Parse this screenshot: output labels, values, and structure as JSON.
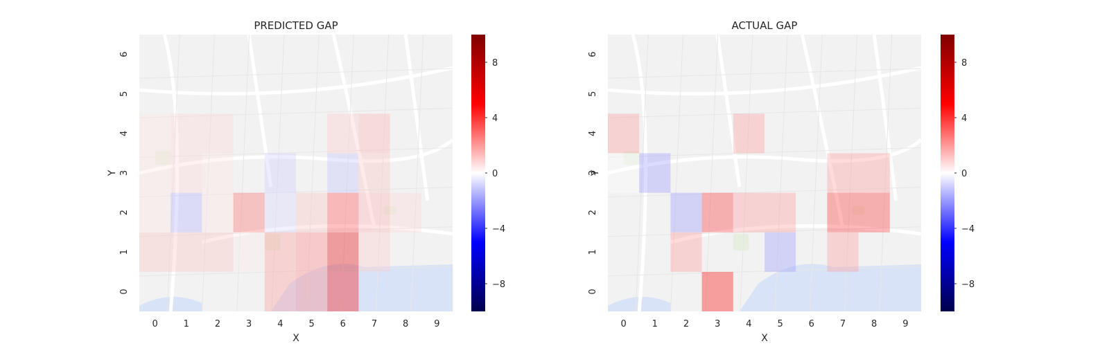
{
  "figure": {
    "background": "#ffffff"
  },
  "colors": {
    "map_land": "#f2f2f2",
    "map_water": "#d8e3f7",
    "map_park": "#e6eedf",
    "positive": "#ff0000",
    "negative": "#0000ff"
  },
  "colorbar": {
    "vmin": -10,
    "vmax": 10,
    "ticks": [
      8,
      4,
      0,
      -4,
      -8
    ],
    "tick_labels": [
      "8",
      "4",
      "0",
      "−4",
      "−8"
    ],
    "colormap": "seismic"
  },
  "chart_data": [
    {
      "type": "heatmap",
      "title": "PREDICTED GAP",
      "xlabel": "X",
      "ylabel": "Y",
      "x": [
        0,
        1,
        2,
        3,
        4,
        5,
        6,
        7,
        8,
        9
      ],
      "y": [
        0,
        1,
        2,
        3,
        4,
        5,
        6
      ],
      "xlim": [
        -0.5,
        9.5
      ],
      "ylim": [
        -0.5,
        6.5
      ],
      "background": "map",
      "cells": [
        {
          "x": 0,
          "y": 1,
          "value": 1.2
        },
        {
          "x": 1,
          "y": 1,
          "value": 1.2
        },
        {
          "x": 2,
          "y": 1,
          "value": 1.2
        },
        {
          "x": 3,
          "y": 1,
          "value": 0.4
        },
        {
          "x": 4,
          "y": 1,
          "value": 2.0
        },
        {
          "x": 5,
          "y": 1,
          "value": 2.5
        },
        {
          "x": 6,
          "y": 1,
          "value": 6.0
        },
        {
          "x": 7,
          "y": 1,
          "value": 1.0
        },
        {
          "x": 4,
          "y": 0,
          "value": 2.0
        },
        {
          "x": 5,
          "y": 0,
          "value": 2.5
        },
        {
          "x": 6,
          "y": 0,
          "value": 5.0
        },
        {
          "x": 0,
          "y": 2,
          "value": 0.5
        },
        {
          "x": 1,
          "y": 2,
          "value": -1.5
        },
        {
          "x": 2,
          "y": 2,
          "value": 0.5
        },
        {
          "x": 3,
          "y": 2,
          "value": 3.0
        },
        {
          "x": 4,
          "y": 2,
          "value": -0.8
        },
        {
          "x": 5,
          "y": 2,
          "value": 1.2
        },
        {
          "x": 6,
          "y": 2,
          "value": 3.5
        },
        {
          "x": 7,
          "y": 2,
          "value": 1.5
        },
        {
          "x": 8,
          "y": 2,
          "value": 0.8
        },
        {
          "x": 0,
          "y": 3,
          "value": 0.5
        },
        {
          "x": 1,
          "y": 3,
          "value": 0.8
        },
        {
          "x": 2,
          "y": 3,
          "value": 0.5
        },
        {
          "x": 4,
          "y": 3,
          "value": -1.0
        },
        {
          "x": 6,
          "y": 3,
          "value": -1.2
        },
        {
          "x": 7,
          "y": 3,
          "value": 1.2
        },
        {
          "x": 0,
          "y": 4,
          "value": 0.5
        },
        {
          "x": 1,
          "y": 4,
          "value": 0.8
        },
        {
          "x": 2,
          "y": 4,
          "value": 0.8
        },
        {
          "x": 6,
          "y": 4,
          "value": 1.0
        },
        {
          "x": 7,
          "y": 4,
          "value": 1.5
        }
      ]
    },
    {
      "type": "heatmap",
      "title": "ACTUAL GAP",
      "xlabel": "X",
      "ylabel": "Y",
      "x": [
        0,
        1,
        2,
        3,
        4,
        5,
        6,
        7,
        8,
        9
      ],
      "y": [
        0,
        1,
        2,
        3,
        4,
        5,
        6
      ],
      "xlim": [
        -0.5,
        9.5
      ],
      "ylim": [
        -0.5,
        6.5
      ],
      "background": "map",
      "cells": [
        {
          "x": 0,
          "y": 4,
          "value": 2.0
        },
        {
          "x": 0,
          "y": 3,
          "value": 0.0
        },
        {
          "x": 1,
          "y": 3,
          "value": -2.0
        },
        {
          "x": 4,
          "y": 4,
          "value": 2.0
        },
        {
          "x": 2,
          "y": 2,
          "value": -2.0
        },
        {
          "x": 3,
          "y": 2,
          "value": 4.0
        },
        {
          "x": 4,
          "y": 2,
          "value": 2.0
        },
        {
          "x": 5,
          "y": 2,
          "value": 2.0
        },
        {
          "x": 7,
          "y": 2,
          "value": 4.0
        },
        {
          "x": 8,
          "y": 2,
          "value": 4.0
        },
        {
          "x": 7,
          "y": 3,
          "value": 2.0
        },
        {
          "x": 8,
          "y": 3,
          "value": 2.0
        },
        {
          "x": 2,
          "y": 1,
          "value": 2.0
        },
        {
          "x": 5,
          "y": 1,
          "value": -2.0
        },
        {
          "x": 7,
          "y": 1,
          "value": 2.0
        },
        {
          "x": 3,
          "y": 0,
          "value": 5.0
        }
      ]
    }
  ]
}
